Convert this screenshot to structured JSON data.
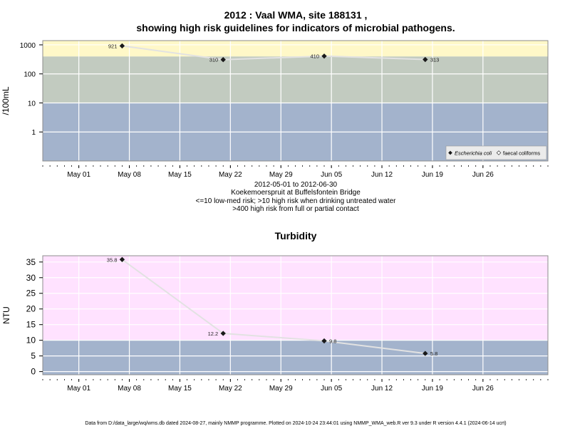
{
  "title": {
    "line1": "2012 : Vaal WMA, site 188131 ,",
    "line2": "showing high risk guidelines for indicators of microbial pathogens."
  },
  "caption": {
    "date_range": "2012-05-01 to 2012-06-30",
    "site": "Koekemoerspruit at Buffelsfontein Bridge",
    "risk1": "<=10 low-med risk; >10 high risk when drinking untreated water",
    "risk2": ">400 high risk from full or partial contact"
  },
  "footer": "Data from D:/data_large/wq/wms.db dated 2024-08-27, mainly NMMP programme. Plotted on 2024-10-24 23:44:01 using NMMP_WMA_web.R ver 9.3 under R version 4.4.1 (2024-06-14 ucrt)",
  "colors": {
    "band_blue": "#a3b3cc",
    "band_grey": "#c2cbc0",
    "band_yellow": "#fff8c8",
    "band_pink": "#ffe2ff",
    "line": "#e2e2e2",
    "point": "#1a1a1a"
  },
  "chart_data": [
    {
      "type": "line",
      "scale": "log",
      "title": "",
      "ylabel": "/100mL",
      "xlim": [
        "2012-04-26",
        "2012-07-05"
      ],
      "ylim": [
        0.1,
        1400
      ],
      "x_ticks": [
        {
          "date": "2012-05-01",
          "label": "May 01"
        },
        {
          "date": "2012-05-08",
          "label": "May 08"
        },
        {
          "date": "2012-05-15",
          "label": "May 15"
        },
        {
          "date": "2012-05-22",
          "label": "May 22"
        },
        {
          "date": "2012-05-29",
          "label": "May 29"
        },
        {
          "date": "2012-06-05",
          "label": "Jun 05"
        },
        {
          "date": "2012-06-12",
          "label": "Jun 12"
        },
        {
          "date": "2012-06-19",
          "label": "Jun 19"
        },
        {
          "date": "2012-06-26",
          "label": "Jun 26"
        }
      ],
      "y_ticks": [
        1,
        10,
        100,
        1000
      ],
      "y_tick_labels": [
        "1",
        "10",
        "100",
        "1000"
      ],
      "bands": [
        {
          "from": 0.1,
          "to": 10,
          "color": "band_blue"
        },
        {
          "from": 10,
          "to": 400,
          "color": "band_grey"
        },
        {
          "from": 400,
          "to": 1400,
          "color": "band_yellow"
        }
      ],
      "series": [
        {
          "name": "Escherichia coli",
          "points": [
            {
              "date": "2012-05-07",
              "value": 921,
              "label": "921",
              "label_side": "left"
            },
            {
              "date": "2012-05-21",
              "value": 310,
              "label": "310",
              "label_side": "left"
            },
            {
              "date": "2012-06-04",
              "value": 410,
              "label": "410",
              "label_side": "left"
            },
            {
              "date": "2012-06-18",
              "value": 313,
              "label": "313",
              "label_side": "right"
            }
          ]
        }
      ],
      "legend": {
        "placement": "bottom-right",
        "entries": [
          {
            "label": "Escherichia coli",
            "marker": "filled"
          },
          {
            "label": "faecal coliforms",
            "marker": "open"
          }
        ]
      }
    },
    {
      "type": "line",
      "scale": "linear",
      "title": "Turbidity",
      "ylabel": "NTU",
      "xlim": [
        "2012-04-26",
        "2012-07-05"
      ],
      "ylim": [
        -1,
        37
      ],
      "x_ticks": [
        {
          "date": "2012-05-01",
          "label": "May 01"
        },
        {
          "date": "2012-05-08",
          "label": "May 08"
        },
        {
          "date": "2012-05-15",
          "label": "May 15"
        },
        {
          "date": "2012-05-22",
          "label": "May 22"
        },
        {
          "date": "2012-05-29",
          "label": "May 29"
        },
        {
          "date": "2012-06-05",
          "label": "Jun 05"
        },
        {
          "date": "2012-06-12",
          "label": "Jun 12"
        },
        {
          "date": "2012-06-19",
          "label": "Jun 19"
        },
        {
          "date": "2012-06-26",
          "label": "Jun 26"
        }
      ],
      "y_ticks": [
        0,
        5,
        10,
        15,
        20,
        25,
        30,
        35
      ],
      "y_tick_labels": [
        "0",
        "5",
        "10",
        "15",
        "20",
        "25",
        "30",
        "35"
      ],
      "bands": [
        {
          "from": -1,
          "to": 10,
          "color": "band_blue"
        },
        {
          "from": 10,
          "to": 37,
          "color": "band_pink"
        }
      ],
      "series": [
        {
          "name": "",
          "points": [
            {
              "date": "2012-05-07",
              "value": 35.8,
              "label": "35.8",
              "label_side": "left"
            },
            {
              "date": "2012-05-21",
              "value": 12.2,
              "label": "12.2",
              "label_side": "left"
            },
            {
              "date": "2012-06-04",
              "value": 9.8,
              "label": "9.8",
              "label_side": "right"
            },
            {
              "date": "2012-06-18",
              "value": 5.8,
              "label": "5.8",
              "label_side": "right"
            }
          ]
        }
      ]
    }
  ]
}
